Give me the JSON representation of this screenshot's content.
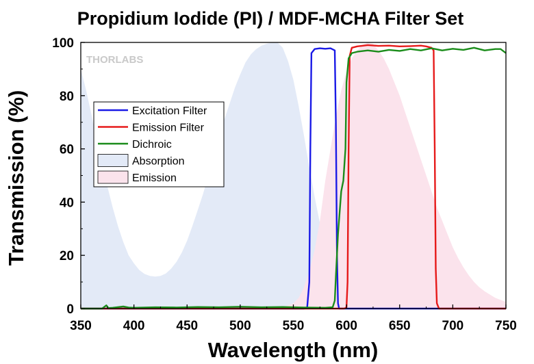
{
  "chart_data": {
    "type": "line",
    "title": "Propidium Iodide (PI) / MDF-MCHA Filter Set",
    "xlabel": "Wavelength (nm)",
    "ylabel": "Transmission (%)",
    "xlim": [
      350,
      750
    ],
    "ylim": [
      0,
      100
    ],
    "xticks": [
      "350",
      "400",
      "450",
      "500",
      "550",
      "600",
      "650",
      "700",
      "750"
    ],
    "yticks": [
      "0",
      "20",
      "40",
      "60",
      "80",
      "100"
    ],
    "grid": false,
    "legend_position": "upper-left",
    "watermark": "THORLABS",
    "series": [
      {
        "name": "Excitation Filter",
        "kind": "line",
        "color": "#1a1ae6",
        "x": [
          350,
          560,
          563,
          565,
          566,
          567,
          570,
          575,
          580,
          585,
          589,
          590,
          591,
          592,
          593,
          600,
          750
        ],
        "y": [
          0,
          0,
          0.5,
          10,
          60,
          96,
          97.5,
          97.8,
          97.6,
          97.8,
          97,
          70,
          20,
          2,
          0,
          0,
          0
        ]
      },
      {
        "name": "Emission Filter",
        "kind": "line",
        "color": "#e61a1a",
        "x": [
          350,
          598,
          600,
          601,
          602,
          603,
          605,
          610,
          620,
          630,
          640,
          650,
          660,
          670,
          675,
          680,
          682,
          683,
          684,
          685,
          687,
          750
        ],
        "y": [
          0,
          0,
          0.5,
          10,
          60,
          95,
          98,
          98.5,
          99,
          98.7,
          98.8,
          98.5,
          98.6,
          98.8,
          98.5,
          98,
          97,
          60,
          15,
          2,
          0,
          0
        ]
      },
      {
        "name": "Dichroic",
        "kind": "line",
        "color": "#1a8c1a",
        "x": [
          350,
          370,
          374,
          376,
          380,
          390,
          395,
          400,
          420,
          440,
          460,
          480,
          500,
          520,
          540,
          560,
          580,
          587,
          589,
          590,
          592,
          595,
          596,
          597,
          599,
          600,
          602,
          605,
          610,
          620,
          630,
          640,
          650,
          660,
          670,
          680,
          690,
          700,
          710,
          720,
          730,
          740,
          745,
          750
        ],
        "y": [
          0,
          0,
          1.2,
          0.2,
          0.3,
          0.8,
          0.4,
          0.3,
          0.5,
          0.4,
          0.6,
          0.5,
          0.7,
          0.5,
          0.6,
          0.4,
          0.3,
          0.5,
          3,
          12,
          28,
          44,
          46,
          48,
          60,
          85,
          94,
          96,
          96.5,
          97,
          96.5,
          97.2,
          96.8,
          97.5,
          97,
          97.8,
          97,
          97.6,
          97.2,
          98,
          97,
          97.5,
          97.5,
          96
        ]
      },
      {
        "name": "Absorption",
        "kind": "area",
        "color": "#e3eaf7",
        "x": [
          350,
          355,
          360,
          365,
          370,
          375,
          380,
          385,
          390,
          395,
          400,
          405,
          410,
          415,
          420,
          425,
          430,
          435,
          440,
          445,
          450,
          455,
          460,
          465,
          470,
          475,
          480,
          485,
          490,
          495,
          500,
          505,
          510,
          515,
          520,
          525,
          530,
          535,
          540,
          545,
          550,
          555,
          560,
          565,
          570,
          575,
          580,
          585,
          590,
          595,
          600,
          605,
          610,
          615,
          620,
          625,
          630,
          635,
          640,
          645,
          650
        ],
        "y": [
          90,
          82,
          73,
          63,
          54,
          46,
          38,
          31,
          25,
          20,
          17,
          14.5,
          13,
          12.3,
          12,
          12.3,
          13.2,
          15,
          17.5,
          21,
          25.5,
          31,
          37,
          43,
          50,
          57,
          64,
          71,
          77,
          83,
          88,
          92.5,
          95.5,
          97.5,
          98.8,
          99.5,
          100,
          100,
          98,
          93,
          86,
          76,
          65,
          53,
          42,
          32,
          23,
          16,
          10.5,
          6.5,
          4,
          2.5,
          1.5,
          0.8,
          0.5,
          0.3,
          0.2,
          0.1,
          0.05,
          0.02,
          0
        ]
      },
      {
        "name": "Emission",
        "kind": "area",
        "color": "#fbe3ec",
        "x": [
          500,
          530,
          540,
          550,
          555,
          560,
          565,
          570,
          575,
          580,
          585,
          590,
          595,
          600,
          605,
          610,
          615,
          620,
          625,
          630,
          635,
          640,
          645,
          650,
          655,
          660,
          665,
          670,
          675,
          680,
          685,
          690,
          695,
          700,
          705,
          710,
          715,
          720,
          725,
          730,
          740,
          750
        ],
        "y": [
          0,
          0,
          0.5,
          2,
          4,
          8,
          14,
          22,
          33,
          48,
          60,
          72,
          82,
          89,
          94,
          97,
          99,
          100,
          99.5,
          97,
          94,
          90,
          85,
          80,
          74,
          68,
          62,
          56,
          50,
          44,
          38,
          33,
          28,
          23,
          19,
          15.5,
          12.5,
          10,
          8,
          6.5,
          4,
          2.5
        ]
      }
    ]
  }
}
